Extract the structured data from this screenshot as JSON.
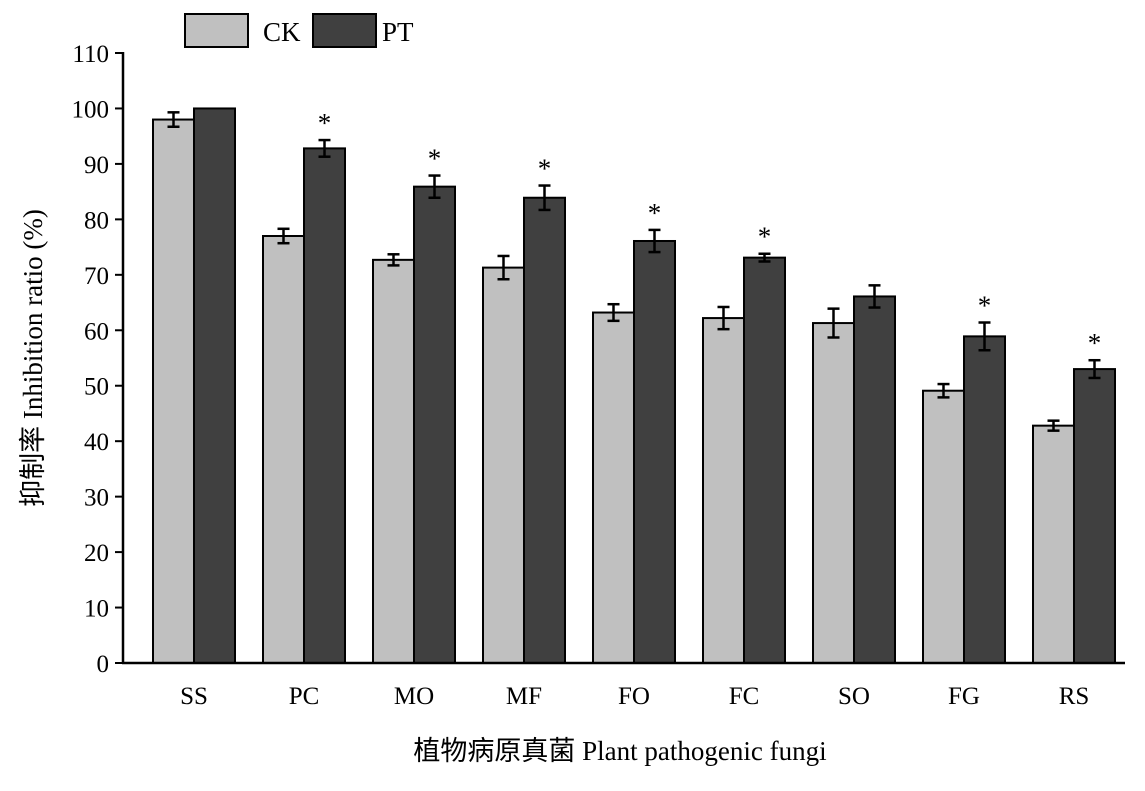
{
  "chart_data": {
    "type": "bar",
    "xlabel": "植物病原真菌 Plant pathogenic fungi",
    "ylabel": "抑制率 Inhibition ratio (%)",
    "ylim": [
      0,
      110
    ],
    "yticks": [
      0,
      10,
      20,
      30,
      40,
      50,
      60,
      70,
      80,
      90,
      100,
      110
    ],
    "categories": [
      "SS",
      "PC",
      "MO",
      "MF",
      "FO",
      "FC",
      "SO",
      "FG",
      "RS"
    ],
    "series": [
      {
        "name": "CK",
        "color": "#c0c0c0",
        "values": [
          98,
          77,
          72.7,
          71.3,
          63.2,
          62.2,
          61.3,
          49.1,
          42.8
        ],
        "errors": [
          1.3,
          1.3,
          1.0,
          2.1,
          1.5,
          2.0,
          2.6,
          1.2,
          0.9
        ],
        "significance": [
          "",
          "",
          "",
          "",
          "",
          "",
          "",
          "",
          ""
        ]
      },
      {
        "name": "PT",
        "color": "#404040",
        "values": [
          100,
          92.8,
          85.9,
          83.9,
          76.1,
          73.1,
          66.1,
          58.9,
          53.0
        ],
        "errors": [
          0,
          1.5,
          2.0,
          2.2,
          2.0,
          0.7,
          2.0,
          2.5,
          1.6
        ],
        "significance": [
          "",
          "*",
          "*",
          "*",
          "*",
          "*",
          "",
          "*",
          "*"
        ]
      }
    ],
    "legend": {
      "position": "top-left",
      "orientation": "horizontal"
    },
    "grid": false
  }
}
